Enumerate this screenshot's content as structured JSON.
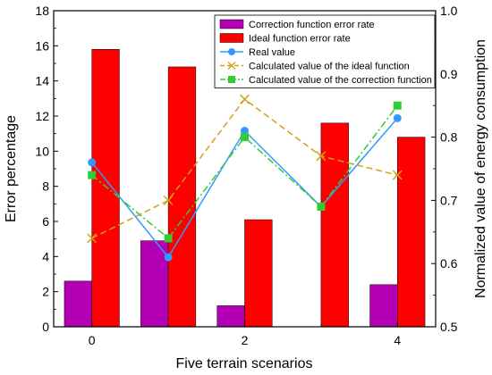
{
  "chart_data": {
    "type": "bar",
    "xlabel": "Five terrain scenarios",
    "ylabel": "Error percentage",
    "y2label": "Normalized value of energy consumption",
    "x_ticks": [
      "0",
      "2",
      "4"
    ],
    "xlim": [
      -0.5,
      4.5
    ],
    "ylim": [
      0,
      18
    ],
    "y_ticks": [
      "0",
      "2",
      "4",
      "6",
      "8",
      "10",
      "12",
      "14",
      "16",
      "18"
    ],
    "y2lim": [
      0.5,
      1.0
    ],
    "y2_ticks": [
      "0.5",
      "0.6",
      "0.7",
      "0.8",
      "0.9",
      "1.0"
    ],
    "x": [
      0,
      1,
      2,
      3,
      4
    ],
    "bar_series": [
      {
        "name": "Correction function error rate",
        "color": "#b400b4",
        "values": [
          2.6,
          4.9,
          1.2,
          0,
          2.4
        ]
      },
      {
        "name": "Ideal function error rate",
        "color": "#ff0000",
        "values": [
          15.8,
          14.8,
          6.1,
          11.6,
          10.8
        ]
      }
    ],
    "line_series": [
      {
        "name": "Real value",
        "color": "#3399ff",
        "marker": "circle",
        "linestyle": "solid",
        "values": [
          0.76,
          0.61,
          0.81,
          0.69,
          0.83
        ]
      },
      {
        "name": "Calculated value of the ideal function",
        "color": "#d4a017",
        "marker": "x",
        "linestyle": "dashed",
        "values": [
          0.64,
          0.7,
          0.86,
          0.77,
          0.74
        ]
      },
      {
        "name": "Calculated value of the correction function",
        "color": "#33cc33",
        "marker": "square",
        "linestyle": "dashdot",
        "values": [
          0.74,
          0.64,
          0.8,
          0.69,
          0.85
        ]
      }
    ],
    "legend": {
      "placement": "top-right"
    }
  }
}
